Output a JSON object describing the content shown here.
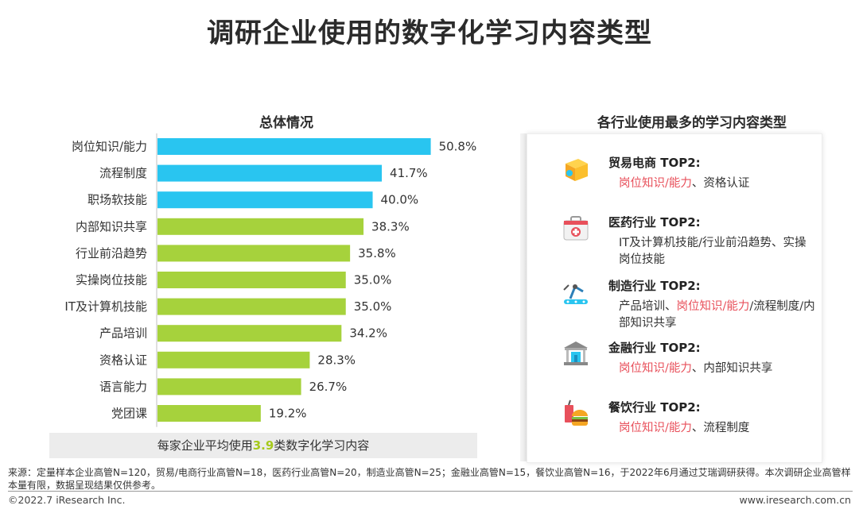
{
  "page_title": "调研企业使用的数字化学习内容类型",
  "chart_data": {
    "type": "bar",
    "orientation": "horizontal",
    "title": "总体情况",
    "categories": [
      "岗位知识/能力",
      "流程制度",
      "职场软技能",
      "内部知识共享",
      "行业前沿趋势",
      "实操岗位技能",
      "IT及计算机技能",
      "产品培训",
      "资格认证",
      "语言能力",
      "党团课"
    ],
    "values": [
      50.8,
      41.7,
      40.0,
      38.3,
      35.8,
      35.0,
      35.0,
      34.2,
      28.3,
      26.7,
      19.2
    ],
    "value_labels": [
      "50.8%",
      "41.7%",
      "40.0%",
      "38.3%",
      "35.8%",
      "35.0%",
      "35.0%",
      "34.2%",
      "28.3%",
      "26.7%",
      "19.2%"
    ],
    "highlight_count": 3,
    "colors": {
      "highlight": "#29c5f0",
      "default": "#a6d23c"
    },
    "xlim": [
      0,
      55
    ],
    "grid": false
  },
  "average": {
    "prefix": "每家企业平均使用",
    "value": "3.9",
    "suffix": "类数字化学习内容"
  },
  "right_panel": {
    "title": "各行业使用最多的学习内容类型",
    "industries": [
      {
        "icon": "box-icon",
        "head": "贸易电商 TOP2:",
        "red": "岗位知识/能力",
        "rest": "、资格认证"
      },
      {
        "icon": "medical-kit-icon",
        "head": "医药行业 TOP2:",
        "red": "",
        "rest": "IT及计算机技能/行业前沿趋势、实操岗位技能"
      },
      {
        "icon": "robot-arm-icon",
        "head": "制造行业 TOP2:",
        "pre": "产品培训、",
        "red": "岗位知识/能力",
        "rest": "/流程制度/内部知识共享"
      },
      {
        "icon": "bank-icon",
        "head": "金融行业 TOP2:",
        "red": "岗位知识/能力",
        "rest": "、内部知识共享"
      },
      {
        "icon": "food-icon",
        "head": "餐饮行业 TOP2:",
        "red": "岗位知识/能力",
        "rest": "、流程制度"
      }
    ]
  },
  "source": "来源：定量样本企业高管N=120，贸易/电商行业高管N=18，医药行业高管N=20，制造业高管N=25；金融业高管N=15，餐饮业高管N=16，于2022年6月通过艾瑞调研获得。本次调研企业高管样本量有限，数据呈现结果仅供参考。",
  "footer": {
    "copyright": "©2022.7 iResearch Inc.",
    "website": "www.iresearch.com.cn"
  }
}
